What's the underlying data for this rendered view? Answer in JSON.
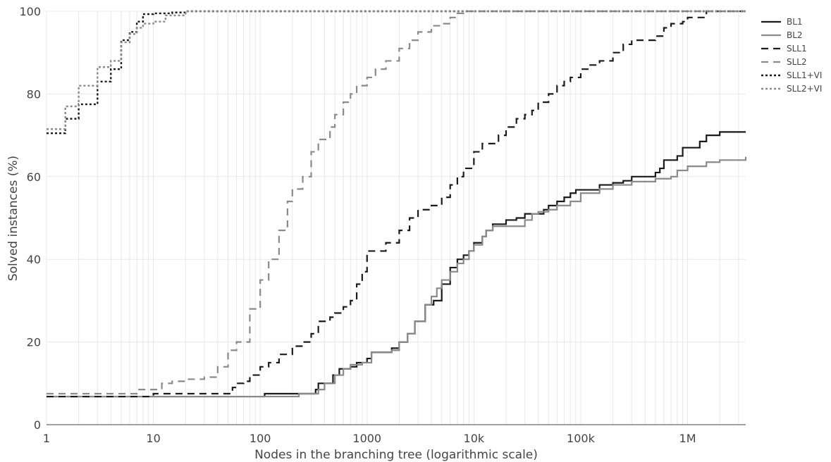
{
  "chart_data": {
    "type": "line",
    "title": "",
    "xlabel": "Nodes in the branching tree (logarithmic scale)",
    "ylabel": "Solved instances (%)",
    "x_scale": "log",
    "xlim": [
      1,
      3500000
    ],
    "ylim": [
      0,
      100
    ],
    "x_ticks": [
      {
        "value": 1,
        "label": "1"
      },
      {
        "value": 10,
        "label": "10"
      },
      {
        "value": 100,
        "label": "100"
      },
      {
        "value": 1000,
        "label": "1000"
      },
      {
        "value": 10000,
        "label": "10k"
      },
      {
        "value": 100000,
        "label": "100k"
      },
      {
        "value": 1000000,
        "label": "1M"
      }
    ],
    "y_ticks": [
      0,
      20,
      40,
      60,
      80,
      100
    ],
    "grid": true,
    "legend_position": "top-right",
    "series": [
      {
        "name": "BL1",
        "color": "#1a1a1a",
        "dash": "solid",
        "width": 2.2,
        "points": [
          [
            1,
            6.8
          ],
          [
            100,
            6.8
          ],
          [
            110,
            7.5
          ],
          [
            200,
            7.5
          ],
          [
            300,
            7.5
          ],
          [
            330,
            8.5
          ],
          [
            350,
            10
          ],
          [
            450,
            10
          ],
          [
            480,
            12
          ],
          [
            550,
            13.5
          ],
          [
            700,
            14
          ],
          [
            800,
            15
          ],
          [
            1000,
            16
          ],
          [
            1100,
            17.5
          ],
          [
            1500,
            17.5
          ],
          [
            1700,
            18.5
          ],
          [
            2000,
            20
          ],
          [
            2400,
            22
          ],
          [
            2800,
            25
          ],
          [
            3500,
            29
          ],
          [
            4200,
            30
          ],
          [
            5000,
            34
          ],
          [
            6000,
            38
          ],
          [
            7000,
            40
          ],
          [
            8000,
            41
          ],
          [
            9000,
            42
          ],
          [
            10000,
            44
          ],
          [
            12000,
            45.5
          ],
          [
            13000,
            47
          ],
          [
            15000,
            48.5
          ],
          [
            20000,
            49.5
          ],
          [
            25000,
            50
          ],
          [
            30000,
            51
          ],
          [
            40000,
            51
          ],
          [
            45000,
            52
          ],
          [
            50000,
            53
          ],
          [
            60000,
            54
          ],
          [
            70000,
            55
          ],
          [
            80000,
            56
          ],
          [
            90000,
            56.8
          ],
          [
            120000,
            56.8
          ],
          [
            150000,
            58
          ],
          [
            200000,
            58.5
          ],
          [
            250000,
            59
          ],
          [
            300000,
            60
          ],
          [
            400000,
            60
          ],
          [
            500000,
            61
          ],
          [
            550000,
            62
          ],
          [
            600000,
            64
          ],
          [
            700000,
            64
          ],
          [
            800000,
            65
          ],
          [
            900000,
            67
          ],
          [
            1100000,
            67
          ],
          [
            1300000,
            68.5
          ],
          [
            1500000,
            70
          ],
          [
            2000000,
            70.8
          ],
          [
            3500000,
            70.8
          ]
        ]
      },
      {
        "name": "BL2",
        "color": "#8a8a8a",
        "dash": "solid",
        "width": 2.2,
        "points": [
          [
            1,
            6.8
          ],
          [
            200,
            6.8
          ],
          [
            230,
            7.5
          ],
          [
            300,
            7.5
          ],
          [
            350,
            8.5
          ],
          [
            400,
            10
          ],
          [
            500,
            12
          ],
          [
            600,
            13.5
          ],
          [
            700,
            14.5
          ],
          [
            900,
            15
          ],
          [
            1000,
            15
          ],
          [
            1100,
            17.5
          ],
          [
            1500,
            17.5
          ],
          [
            1700,
            18
          ],
          [
            2000,
            20
          ],
          [
            2400,
            22
          ],
          [
            2800,
            25
          ],
          [
            3500,
            29
          ],
          [
            4000,
            31
          ],
          [
            4500,
            33
          ],
          [
            5000,
            35
          ],
          [
            6000,
            37
          ],
          [
            7000,
            39
          ],
          [
            8000,
            40
          ],
          [
            9000,
            42
          ],
          [
            10000,
            43.5
          ],
          [
            12000,
            45.5
          ],
          [
            13000,
            47
          ],
          [
            15000,
            48
          ],
          [
            25000,
            48
          ],
          [
            30000,
            49.5
          ],
          [
            35000,
            51
          ],
          [
            40000,
            51.5
          ],
          [
            50000,
            52
          ],
          [
            60000,
            53
          ],
          [
            80000,
            54
          ],
          [
            100000,
            56
          ],
          [
            150000,
            57
          ],
          [
            200000,
            58
          ],
          [
            300000,
            58.8
          ],
          [
            500000,
            59.5
          ],
          [
            700000,
            60
          ],
          [
            800000,
            61.5
          ],
          [
            1000000,
            62.5
          ],
          [
            1500000,
            63.5
          ],
          [
            2000000,
            64
          ],
          [
            3500000,
            64.8
          ]
        ]
      },
      {
        "name": "SLL1",
        "color": "#1a1a1a",
        "dash": "10,7",
        "width": 2.2,
        "points": [
          [
            1,
            6.8
          ],
          [
            9,
            6.8
          ],
          [
            10,
            7.5
          ],
          [
            30,
            7.5
          ],
          [
            50,
            7.5
          ],
          [
            55,
            9
          ],
          [
            60,
            10
          ],
          [
            70,
            10.5
          ],
          [
            80,
            12
          ],
          [
            100,
            14
          ],
          [
            120,
            15
          ],
          [
            150,
            17
          ],
          [
            200,
            19
          ],
          [
            250,
            20
          ],
          [
            300,
            22
          ],
          [
            350,
            25
          ],
          [
            450,
            26
          ],
          [
            500,
            27
          ],
          [
            600,
            28.5
          ],
          [
            700,
            30
          ],
          [
            800,
            34
          ],
          [
            900,
            37
          ],
          [
            1000,
            42
          ],
          [
            1200,
            42
          ],
          [
            1500,
            44
          ],
          [
            2000,
            47
          ],
          [
            2500,
            50
          ],
          [
            3000,
            52
          ],
          [
            4000,
            53
          ],
          [
            5000,
            55
          ],
          [
            6000,
            58
          ],
          [
            7000,
            60
          ],
          [
            8000,
            62
          ],
          [
            10000,
            66
          ],
          [
            12000,
            68
          ],
          [
            15000,
            68
          ],
          [
            17000,
            70
          ],
          [
            20000,
            72
          ],
          [
            25000,
            74
          ],
          [
            30000,
            75
          ],
          [
            35000,
            76
          ],
          [
            40000,
            78
          ],
          [
            50000,
            80
          ],
          [
            60000,
            82
          ],
          [
            70000,
            83
          ],
          [
            80000,
            84
          ],
          [
            100000,
            86
          ],
          [
            120000,
            87
          ],
          [
            150000,
            88
          ],
          [
            200000,
            90
          ],
          [
            250000,
            92
          ],
          [
            300000,
            93
          ],
          [
            400000,
            93
          ],
          [
            500000,
            94
          ],
          [
            600000,
            96
          ],
          [
            700000,
            97
          ],
          [
            900000,
            97.5
          ],
          [
            1000000,
            98.5
          ],
          [
            1200000,
            98.5
          ],
          [
            1500000,
            100
          ],
          [
            3500000,
            100
          ]
        ]
      },
      {
        "name": "SLL2",
        "color": "#8a8a8a",
        "dash": "10,7",
        "width": 2.2,
        "points": [
          [
            1,
            7.5
          ],
          [
            5,
            7.5
          ],
          [
            7,
            8.5
          ],
          [
            10,
            8.5
          ],
          [
            12,
            10
          ],
          [
            15,
            10.5
          ],
          [
            20,
            11
          ],
          [
            30,
            11.5
          ],
          [
            40,
            14
          ],
          [
            50,
            18
          ],
          [
            60,
            20
          ],
          [
            80,
            28
          ],
          [
            100,
            35
          ],
          [
            120,
            40
          ],
          [
            150,
            47
          ],
          [
            180,
            54
          ],
          [
            200,
            57
          ],
          [
            250,
            60
          ],
          [
            300,
            66
          ],
          [
            350,
            69
          ],
          [
            450,
            72
          ],
          [
            500,
            75
          ],
          [
            600,
            78
          ],
          [
            700,
            80
          ],
          [
            800,
            82
          ],
          [
            1000,
            84
          ],
          [
            1200,
            86
          ],
          [
            1500,
            88
          ],
          [
            2000,
            91
          ],
          [
            2500,
            93
          ],
          [
            3000,
            95
          ],
          [
            4000,
            96.5
          ],
          [
            5000,
            97
          ],
          [
            6000,
            98.5
          ],
          [
            7000,
            99.5
          ],
          [
            8000,
            100
          ],
          [
            3500000,
            100
          ]
        ]
      },
      {
        "name": "SLL1+VI",
        "color": "#1a1a1a",
        "dash": "3,3",
        "width": 2.4,
        "points": [
          [
            1,
            70.5
          ],
          [
            1.5,
            74
          ],
          [
            2,
            77.5
          ],
          [
            3,
            83
          ],
          [
            4,
            86
          ],
          [
            5,
            93
          ],
          [
            6,
            95
          ],
          [
            7,
            97.5
          ],
          [
            8,
            99.3
          ],
          [
            10,
            99.5
          ],
          [
            15,
            99.7
          ],
          [
            20,
            100
          ],
          [
            3500000,
            100
          ]
        ]
      },
      {
        "name": "SLL2+VI",
        "color": "#8a8a8a",
        "dash": "3,3",
        "width": 2.4,
        "points": [
          [
            1,
            71.5
          ],
          [
            1.5,
            77
          ],
          [
            2,
            82
          ],
          [
            3,
            86.5
          ],
          [
            4,
            88
          ],
          [
            5,
            92.5
          ],
          [
            6,
            94.5
          ],
          [
            7,
            96
          ],
          [
            8,
            97
          ],
          [
            10,
            97.5
          ],
          [
            13,
            99
          ],
          [
            20,
            100
          ],
          [
            3500000,
            100
          ]
        ]
      }
    ]
  }
}
